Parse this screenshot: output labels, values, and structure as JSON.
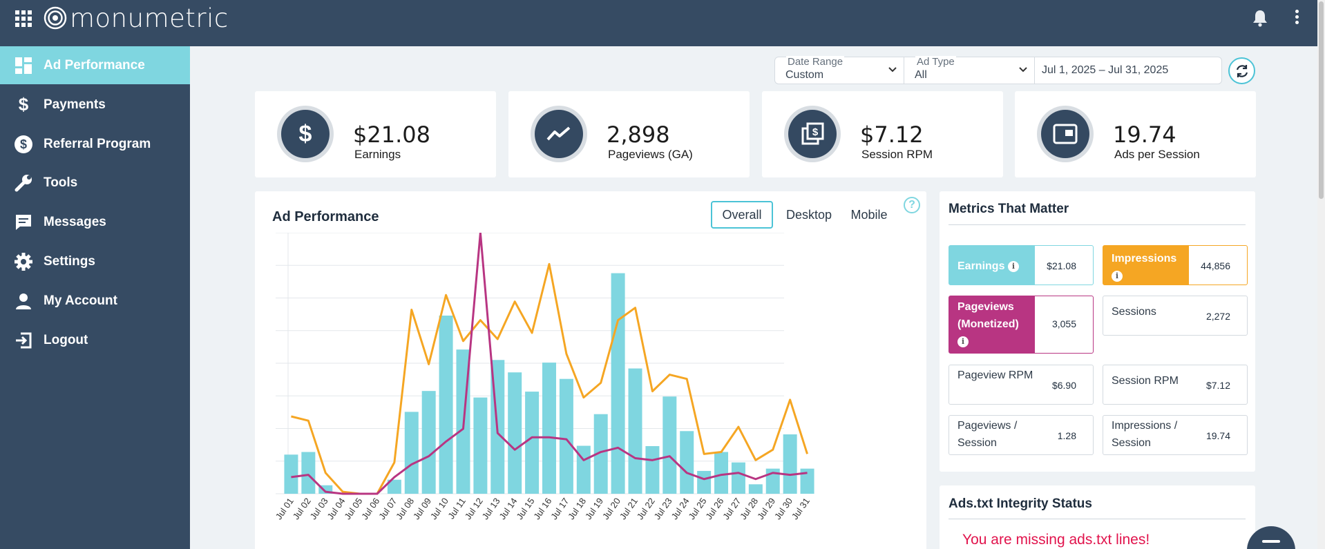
{
  "header": {
    "logo_text": "monumetric"
  },
  "sidebar": {
    "items": [
      {
        "label": "Ad Performance",
        "icon": "dashboard-icon",
        "active": true
      },
      {
        "label": "Payments",
        "icon": "dollar-icon"
      },
      {
        "label": "Referral Program",
        "icon": "dollar-circle-icon"
      },
      {
        "label": "Tools",
        "icon": "wrench-icon"
      },
      {
        "label": "Messages",
        "icon": "message-icon"
      },
      {
        "label": "Settings",
        "icon": "gear-icon"
      },
      {
        "label": "My Account",
        "icon": "user-icon"
      },
      {
        "label": "Logout",
        "icon": "logout-icon"
      }
    ]
  },
  "filters": {
    "date_range": {
      "label": "Date Range",
      "value": "Custom"
    },
    "ad_type": {
      "label": "Ad Type",
      "value": "All"
    },
    "dates": "Jul 1, 2025 – Jul 31, 2025"
  },
  "stats": [
    {
      "value": "$21.08",
      "label": "Earnings",
      "icon": "dollar-icon"
    },
    {
      "value": "2,898",
      "label": "Pageviews (GA)",
      "icon": "trend-line-icon"
    },
    {
      "value": "$7.12",
      "label": "Session RPM",
      "icon": "dollar-pages-icon"
    },
    {
      "value": "19.74",
      "label": "Ads per Session",
      "icon": "ad-window-icon"
    }
  ],
  "ad_performance": {
    "title": "Ad Performance",
    "tabs": [
      "Overall",
      "Desktop",
      "Mobile"
    ],
    "active_tab": "Overall",
    "help": "?"
  },
  "chart_data": {
    "type": "bar",
    "categories": [
      "Jul 01",
      "Jul 02",
      "Jul 03",
      "Jul 04",
      "Jul 05",
      "Jul 06",
      "Jul 07",
      "Jul 08",
      "Jul 09",
      "Jul 10",
      "Jul 11",
      "Jul 12",
      "Jul 13",
      "Jul 14",
      "Jul 15",
      "Jul 16",
      "Jul 17",
      "Jul 18",
      "Jul 19",
      "Jul 20",
      "Jul 21",
      "Jul 22",
      "Jul 23",
      "Jul 24",
      "Jul 25",
      "Jul 26",
      "Jul 27",
      "Jul 28",
      "Jul 29",
      "Jul 30",
      "Jul 31"
    ],
    "series": [
      {
        "type": "bar",
        "color": "#7fd6e0",
        "values": [
          12,
          12.8,
          2.6,
          0,
          0,
          0,
          4.3,
          25.1,
          31.5,
          54.6,
          44.2,
          29.5,
          41,
          37.2,
          31.3,
          40.2,
          35.2,
          14.7,
          24.4,
          67.6,
          38.4,
          14.6,
          29.8,
          19.2,
          7,
          12.8,
          9.6,
          2.9,
          7.7,
          18.2,
          7.7
        ]
      },
      {
        "type": "line",
        "color": "#f5a623",
        "values": [
          23.7,
          22.4,
          6.4,
          0.6,
          0,
          0,
          9.6,
          56.4,
          39.7,
          60.9,
          46.8,
          53.2,
          47.4,
          58.9,
          49.3,
          70.4,
          42.9,
          29.5,
          34,
          53.2,
          57,
          31.4,
          36.5,
          35.2,
          12.2,
          12.8,
          20.5,
          10.3,
          13.5,
          28.8,
          12.2
        ]
      },
      {
        "type": "line",
        "color": "#b83582",
        "values": [
          5.1,
          5.8,
          0.6,
          0,
          0,
          0,
          5.1,
          9,
          11.5,
          16,
          19.9,
          80,
          18.6,
          13.5,
          17.3,
          17.3,
          16.7,
          10.3,
          12.8,
          14.1,
          10.9,
          10.3,
          11.5,
          6.4,
          4.5,
          5.8,
          6.4,
          4.5,
          6.4,
          5.8,
          6.4
        ]
      }
    ],
    "ylim": [
      0,
      80
    ],
    "grid": true
  },
  "metrics": {
    "title": "Metrics That Matter",
    "items": [
      {
        "label": "Earnings",
        "value": "$21.08",
        "info": true,
        "color": "#7fd6e0",
        "border": "#7fd6e0"
      },
      {
        "label": "Impressions",
        "value": "44,856",
        "info": true,
        "color": "#f5a623",
        "border": "#f5a623"
      },
      {
        "label": "Pageviews (Monetized)",
        "value": "3,055",
        "info": true,
        "color": "#b83582",
        "border": "#b83582"
      },
      {
        "label": "Sessions",
        "value": "2,272"
      },
      {
        "label": "Pageview RPM",
        "value": "$6.90"
      },
      {
        "label": "Session RPM",
        "value": "$7.12"
      },
      {
        "label": "Pageviews / Session",
        "value": "1.28"
      },
      {
        "label": "Impressions / Session",
        "value": "19.74"
      }
    ]
  },
  "ads_txt": {
    "title": "Ads.txt Integrity Status",
    "warning": "You are missing ads.txt lines!"
  }
}
